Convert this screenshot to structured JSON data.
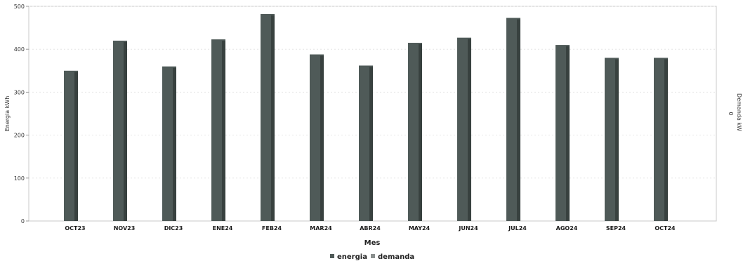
{
  "chart_data": {
    "type": "bar",
    "categories": [
      "OCT23",
      "NOV23",
      "DIC23",
      "ENE24",
      "FEB24",
      "MAR24",
      "ABR24",
      "MAY24",
      "JUN24",
      "JUL24",
      "AGO24",
      "SEP24",
      "OCT24"
    ],
    "series": [
      {
        "name": "energia",
        "values": [
          350,
          420,
          360,
          423,
          482,
          388,
          362,
          415,
          427,
          473,
          410,
          380,
          380
        ]
      },
      {
        "name": "demanda",
        "values": [
          0,
          0,
          0,
          0,
          0,
          0,
          0,
          0,
          0,
          0,
          0,
          0,
          0
        ]
      }
    ],
    "xlabel": "Mes",
    "ylabel": "Energia kWh",
    "y2label": "Demanda kW",
    "y2_tick": "0",
    "ylim": [
      0,
      500
    ],
    "yticks": [
      0,
      100,
      200,
      300,
      400,
      500
    ],
    "grid": true,
    "legend_position": "bottom-center",
    "colors": {
      "energia": "#4f5a58",
      "energia_shade": "#38413f",
      "demanda": "#8a8f8e"
    }
  }
}
